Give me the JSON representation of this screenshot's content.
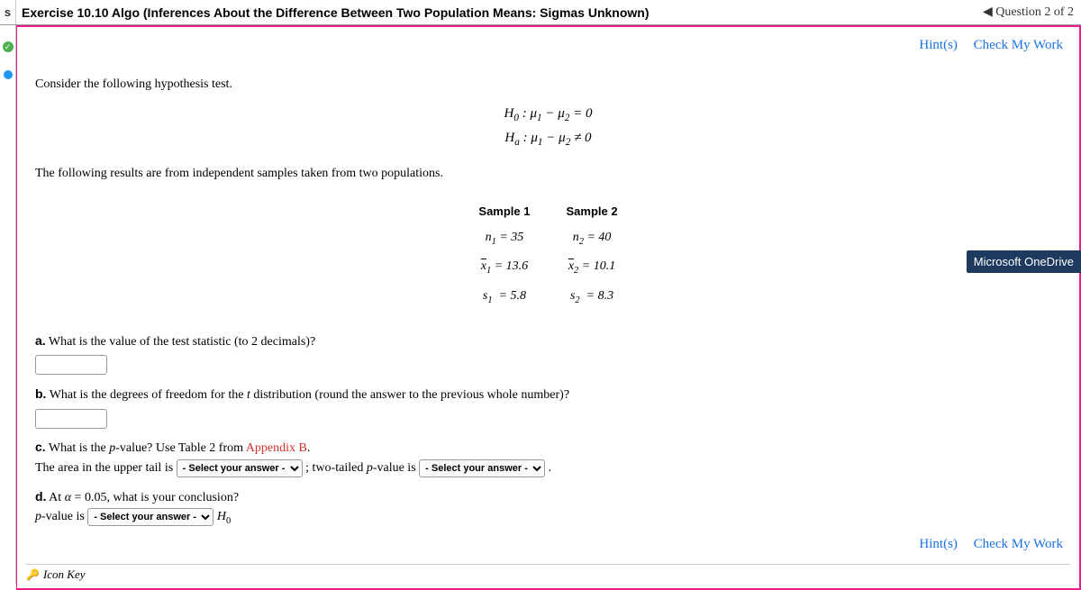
{
  "header": {
    "sidebar_letter": "s",
    "title": "Exercise 10.10 Algo (Inferences About the Difference Between Two Population Means: Sigmas Unknown)",
    "nav_label": "◀ Question 2 of 2"
  },
  "hints": {
    "hints_label": "Hint(s)",
    "check_label": "Check My Work"
  },
  "content": {
    "intro": "Consider the following hypothesis test.",
    "h0": "H₀ : μ₁ − μ₂ = 0",
    "ha": "Hₐ : μ₁ − μ₂ ≠ 0",
    "samples_intro": "The following results are from independent samples taken from two populations.",
    "sample1_label": "Sample 1",
    "sample2_label": "Sample 2",
    "n1": "n₁ = 35",
    "n2": "n₂ = 40",
    "x1": "x̄₁ = 13.6",
    "x2": "x̄₂ = 10.1",
    "s1": "s₁ = 5.8",
    "s2": "s₂ = 8.3",
    "qa_label": "a.",
    "qa_text": " What is the value of the test statistic (to 2 decimals)?",
    "qb_label": "b.",
    "qb_text": " What is the degrees of freedom for the ",
    "qb_text2": " distribution (round the answer to the previous whole number)?",
    "qc_label": "c.",
    "qc_text1": " What is the ",
    "qc_text2": "-value? Use Table 2 from ",
    "qc_appendix": "Appendix B",
    "qc_line2a": "The area in the upper tail is ",
    "qc_line2b": " ; two-tailed ",
    "qc_line2c": "-value is ",
    "qd_label": "d.",
    "qd_text1": " At ",
    "qd_alpha": "α = 0.05",
    "qd_text2": ", what is your conclusion?",
    "qd_line2a": "-value is ",
    "qd_h0": " H₀",
    "select_placeholder": "- Select your answer -",
    "icon_key": "Icon Key"
  },
  "badge": {
    "onedrive": "Microsoft OneDrive"
  }
}
